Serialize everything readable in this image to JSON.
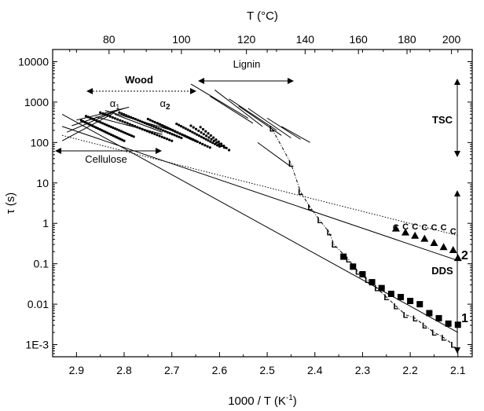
{
  "chart_data": {
    "type": "scatter",
    "title": "",
    "xlabel_bottom": "1000 / T (K",
    "xlabel_bottom_sup": "-1",
    "xlabel_bottom_end": ")",
    "xlabel_top": "T (°C)",
    "ylabel": "τ (s)",
    "xlim": [
      2.95,
      2.07
    ],
    "ylim": [
      0.0005,
      20000
    ],
    "y_scale": "log",
    "x_ticks": [
      2.9,
      2.8,
      2.7,
      2.6,
      2.5,
      2.4,
      2.3,
      2.2,
      2.1
    ],
    "x_tick_labels": [
      "2.9",
      "2.8",
      "2.7",
      "2.6",
      "2.5",
      "2.4",
      "2.3",
      "2.2",
      "2.1"
    ],
    "y_ticks": [
      0.001,
      0.01,
      0.1,
      1,
      10,
      100,
      1000,
      10000
    ],
    "y_tick_labels": [
      "1E-3",
      "0.01",
      "0.1",
      "1",
      "10",
      "100",
      "1000",
      "10000"
    ],
    "top_ticks_C": [
      80,
      100,
      120,
      140,
      160,
      180,
      200
    ],
    "top_tick_labels": [
      "80",
      "100",
      "120",
      "140",
      "160",
      "180",
      "200"
    ],
    "series": [
      {
        "name": "1",
        "marker": "square",
        "points": [
          [
            2.34,
            0.15
          ],
          [
            2.32,
            0.085
          ],
          [
            2.3,
            0.055
          ],
          [
            2.28,
            0.035
          ],
          [
            2.26,
            0.025
          ],
          [
            2.24,
            0.018
          ],
          [
            2.22,
            0.015
          ],
          [
            2.2,
            0.012
          ],
          [
            2.18,
            0.01
          ],
          [
            2.16,
            0.006
          ],
          [
            2.14,
            0.0045
          ],
          [
            2.12,
            0.0033
          ],
          [
            2.1,
            0.0031
          ]
        ]
      },
      {
        "name": "2",
        "marker": "triangle",
        "points": [
          [
            2.23,
            0.75
          ],
          [
            2.21,
            0.6
          ],
          [
            2.19,
            0.5
          ],
          [
            2.17,
            0.42
          ],
          [
            2.15,
            0.33
          ],
          [
            2.13,
            0.26
          ],
          [
            2.11,
            0.22
          ],
          [
            2.1,
            0.14
          ]
        ]
      },
      {
        "marker": "circle-open",
        "points": [
          [
            2.23,
            0.8
          ],
          [
            2.21,
            0.85
          ],
          [
            2.19,
            0.85
          ],
          [
            2.17,
            0.8
          ],
          [
            2.15,
            0.8
          ],
          [
            2.13,
            0.8
          ],
          [
            2.11,
            0.65
          ]
        ]
      },
      {
        "marker": "L",
        "points": [
          [
            2.49,
            220
          ],
          [
            2.45,
            30
          ],
          [
            2.43,
            6
          ],
          [
            2.41,
            2.5
          ],
          [
            2.39,
            1.2
          ],
          [
            2.37,
            0.6
          ],
          [
            2.36,
            0.3
          ],
          [
            2.33,
            0.13
          ],
          [
            2.31,
            0.065
          ],
          [
            2.29,
            0.04
          ],
          [
            2.27,
            0.025
          ],
          [
            2.25,
            0.015
          ],
          [
            2.23,
            0.009
          ],
          [
            2.21,
            0.0055
          ],
          [
            2.19,
            0.0045
          ],
          [
            2.17,
            0.003
          ],
          [
            2.15,
            0.002
          ],
          [
            2.13,
            0.0015
          ],
          [
            2.11,
            0.001
          ]
        ]
      }
    ],
    "fit_lines": [
      {
        "from": [
          2.93,
          500
        ],
        "to": [
          2.1,
          0.002
        ]
      },
      {
        "from": [
          2.93,
          250
        ],
        "to": [
          2.1,
          0.12
        ]
      },
      {
        "from": [
          2.93,
          150
        ],
        "to": [
          2.1,
          0.5
        ],
        "style": "dotted"
      }
    ],
    "wood_dots": [
      {
        "from": [
          2.89,
          350
        ],
        "to": [
          2.8,
          110
        ],
        "count": 24
      },
      {
        "from": [
          2.88,
          450
        ],
        "to": [
          2.78,
          140
        ],
        "count": 24
      },
      {
        "from": [
          2.85,
          550
        ],
        "to": [
          2.7,
          110
        ],
        "count": 30
      },
      {
        "from": [
          2.81,
          550
        ],
        "to": [
          2.68,
          130
        ],
        "count": 28
      },
      {
        "from": [
          2.75,
          380
        ],
        "to": [
          2.65,
          110
        ],
        "count": 22
      },
      {
        "from": [
          2.73,
          300
        ],
        "to": [
          2.62,
          75
        ],
        "count": 22
      },
      {
        "from": [
          2.69,
          290
        ],
        "to": [
          2.6,
          80
        ],
        "count": 20
      },
      {
        "from": [
          2.66,
          260
        ],
        "to": [
          2.59,
          75
        ],
        "count": 14
      },
      {
        "from": [
          2.64,
          240
        ],
        "to": [
          2.58,
          65
        ],
        "count": 12
      }
    ],
    "cellulose_lines": [
      {
        "from": [
          2.93,
          110
        ],
        "to": [
          2.82,
          550
        ]
      },
      {
        "from": [
          2.92,
          180
        ],
        "to": [
          2.81,
          650
        ]
      },
      {
        "from": [
          2.91,
          260
        ],
        "to": [
          2.8,
          700
        ]
      },
      {
        "from": [
          2.9,
          360
        ],
        "to": [
          2.79,
          750
        ]
      }
    ],
    "wood_lines": [
      {
        "from": [
          2.86,
          430
        ],
        "to": [
          2.72,
          160
        ]
      },
      {
        "from": [
          2.84,
          620
        ],
        "to": [
          2.7,
          200
        ]
      },
      {
        "from": [
          2.82,
          500
        ],
        "to": [
          2.72,
          180
        ]
      }
    ],
    "lignin_lines": [
      {
        "from": [
          2.66,
          2800
        ],
        "to": [
          2.54,
          400
        ]
      },
      {
        "from": [
          2.62,
          1400
        ],
        "to": [
          2.53,
          300
        ]
      },
      {
        "from": [
          2.61,
          2000
        ],
        "to": [
          2.51,
          250
        ]
      },
      {
        "from": [
          2.58,
          1200
        ],
        "to": [
          2.48,
          200
        ]
      },
      {
        "from": [
          2.56,
          800
        ],
        "to": [
          2.47,
          150
        ]
      },
      {
        "from": [
          2.54,
          700
        ],
        "to": [
          2.45,
          130
        ]
      },
      {
        "from": [
          2.5,
          400
        ],
        "to": [
          2.43,
          120
        ]
      },
      {
        "from": [
          2.47,
          250
        ],
        "to": [
          2.41,
          100
        ]
      },
      {
        "from": [
          2.52,
          100
        ],
        "to": [
          2.45,
          25
        ]
      }
    ],
    "annotations": {
      "wood": "Wood",
      "alpha1": "α",
      "alpha1_sub": "1",
      "alpha2": "α",
      "alpha2_sub": "2",
      "lignin": "Lignin",
      "cellulose": "Cellulose",
      "tsc": "TSC",
      "dds": "DDS",
      "label_1": "1",
      "label_2": "2",
      "l_marker": "L",
      "c_marker": "C"
    },
    "legend": "none",
    "grid": false
  }
}
